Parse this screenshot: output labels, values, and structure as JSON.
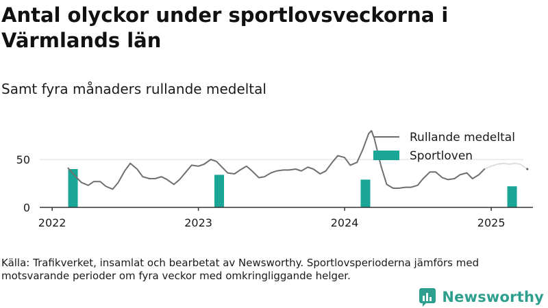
{
  "header": {
    "title": "Antal olyckor under sportlovsveckorna i Värmlands län",
    "subtitle": "Samt fyra månaders rullande medeltal"
  },
  "footer": {
    "source": "Källa: Trafikverket, insamlat och bearbetat av Newsworthy. Sportlovsperioderna jämförs med motsvarande perioder om fyra veckor med omkringliggande helger.",
    "brand": "Newsworthy"
  },
  "colors": {
    "line": "#6e6e6e",
    "bars": "#1aa597",
    "preliminary": "#dcdcdc",
    "brand": "#2e9f8f"
  },
  "chart_data": {
    "type": "bar+line",
    "x_axis": {
      "type": "date",
      "min": "2021-12-01",
      "max": "2025-04-15",
      "ticks": [
        "2022",
        "2023",
        "2024",
        "2025"
      ]
    },
    "y_axis": {
      "min": 0,
      "max": 75,
      "ticks": [
        0,
        50
      ]
    },
    "grid": "horizontal",
    "legend": {
      "position": "top-right",
      "entries": [
        "Rullande medeltal",
        "Sportloven"
      ]
    },
    "series": [
      {
        "name": "Sportloven",
        "type": "bar",
        "points": [
          {
            "x": "2022-02-22",
            "y": 40
          },
          {
            "x": "2023-02-22",
            "y": 34
          },
          {
            "x": "2024-02-22",
            "y": 29
          },
          {
            "x": "2025-02-22",
            "y": 22
          }
        ]
      },
      {
        "name": "Rullande medeltal",
        "type": "line",
        "points": [
          [
            "2022-02-10",
            41
          ],
          [
            "2022-03-01",
            32
          ],
          [
            "2022-03-15",
            26
          ],
          [
            "2022-04-01",
            23
          ],
          [
            "2022-04-15",
            27
          ],
          [
            "2022-05-01",
            27
          ],
          [
            "2022-05-15",
            22
          ],
          [
            "2022-06-01",
            19
          ],
          [
            "2022-06-15",
            26
          ],
          [
            "2022-07-01",
            38
          ],
          [
            "2022-07-15",
            46
          ],
          [
            "2022-08-01",
            40
          ],
          [
            "2022-08-15",
            32
          ],
          [
            "2022-09-01",
            30
          ],
          [
            "2022-09-15",
            30
          ],
          [
            "2022-10-01",
            32
          ],
          [
            "2022-10-15",
            29
          ],
          [
            "2022-11-01",
            24
          ],
          [
            "2022-11-15",
            29
          ],
          [
            "2022-12-01",
            37
          ],
          [
            "2022-12-15",
            44
          ],
          [
            "2023-01-01",
            43
          ],
          [
            "2023-01-15",
            45
          ],
          [
            "2023-02-01",
            50
          ],
          [
            "2023-02-15",
            48
          ],
          [
            "2023-03-01",
            42
          ],
          [
            "2023-03-15",
            36
          ],
          [
            "2023-04-01",
            35
          ],
          [
            "2023-04-15",
            39
          ],
          [
            "2023-05-01",
            43
          ],
          [
            "2023-05-15",
            38
          ],
          [
            "2023-06-01",
            31
          ],
          [
            "2023-06-15",
            32
          ],
          [
            "2023-07-01",
            36
          ],
          [
            "2023-07-15",
            38
          ],
          [
            "2023-08-01",
            39
          ],
          [
            "2023-08-15",
            39
          ],
          [
            "2023-09-01",
            40
          ],
          [
            "2023-09-15",
            38
          ],
          [
            "2023-10-01",
            42
          ],
          [
            "2023-10-15",
            40
          ],
          [
            "2023-11-01",
            35
          ],
          [
            "2023-11-15",
            38
          ],
          [
            "2023-12-01",
            47
          ],
          [
            "2023-12-15",
            54
          ],
          [
            "2024-01-01",
            52
          ],
          [
            "2024-01-15",
            44
          ],
          [
            "2024-02-01",
            47
          ],
          [
            "2024-02-15",
            60
          ],
          [
            "2024-03-01",
            77
          ],
          [
            "2024-03-08",
            80
          ],
          [
            "2024-03-15",
            72
          ],
          [
            "2024-04-01",
            43
          ],
          [
            "2024-04-15",
            24
          ],
          [
            "2024-05-01",
            20
          ],
          [
            "2024-05-15",
            20
          ],
          [
            "2024-06-01",
            21
          ],
          [
            "2024-06-15",
            21
          ],
          [
            "2024-07-01",
            23
          ],
          [
            "2024-07-15",
            30
          ],
          [
            "2024-08-01",
            37
          ],
          [
            "2024-08-15",
            37
          ],
          [
            "2024-09-01",
            31
          ],
          [
            "2024-09-15",
            29
          ],
          [
            "2024-10-01",
            30
          ],
          [
            "2024-10-15",
            34
          ],
          [
            "2024-11-01",
            36
          ],
          [
            "2024-11-15",
            30
          ],
          [
            "2024-12-01",
            34
          ],
          [
            "2024-12-15",
            40
          ]
        ]
      },
      {
        "name": "",
        "type": "line",
        "style": "preliminary",
        "points": [
          [
            "2024-12-15",
            40
          ],
          [
            "2025-01-01",
            43
          ],
          [
            "2025-01-15",
            45
          ],
          [
            "2025-02-01",
            46
          ],
          [
            "2025-02-15",
            45
          ],
          [
            "2025-03-01",
            46
          ],
          [
            "2025-03-15",
            45
          ],
          [
            "2025-04-01",
            40
          ]
        ]
      }
    ]
  }
}
